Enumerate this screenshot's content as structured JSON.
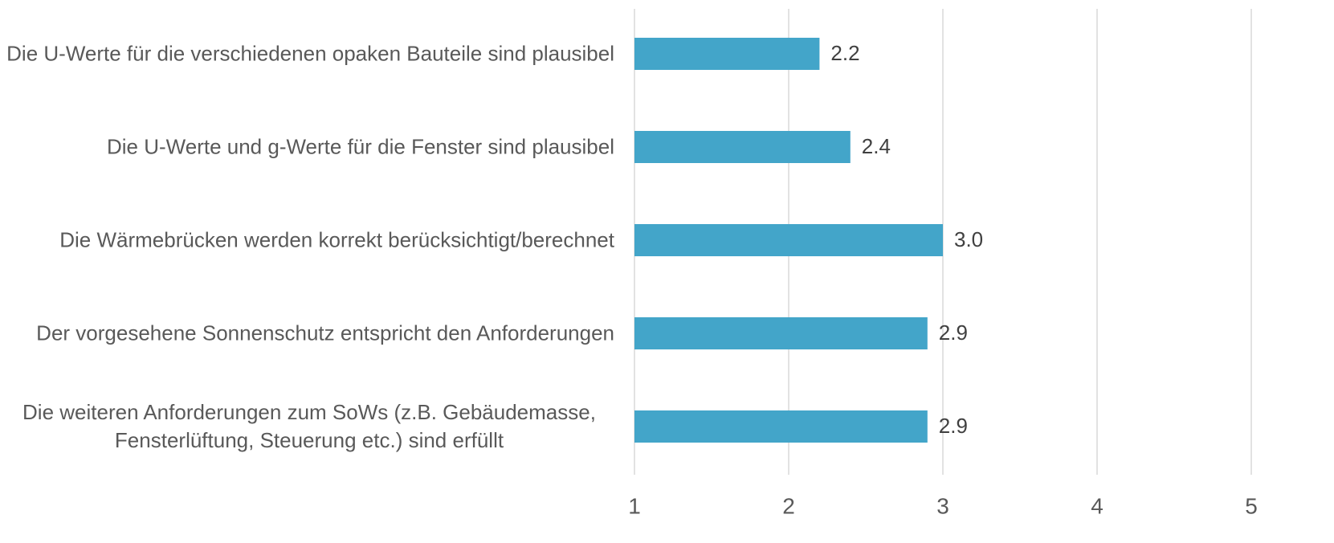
{
  "chart_data": {
    "type": "barh",
    "categories": [
      "Die U-Werte für die verschiedenen opaken Bauteile sind plausibel",
      "Die U-Werte und g-Werte für die Fenster sind plausibel",
      "Die Wärmebrücken werden korrekt berücksichtigt/berechnet",
      "Der vorgesehene Sonnenschutz entspricht den Anforderungen",
      "Die weiteren Anforderungen zum SoWs (z.B. Gebäudemasse, Fensterlüftung, Steuerung etc.) sind erfüllt"
    ],
    "values": [
      2.2,
      2.4,
      3.0,
      2.9,
      2.9
    ],
    "value_labels": [
      "2.2",
      "2.4",
      "3.0",
      "2.9",
      "2.9"
    ],
    "color": "#43a5c9",
    "xlim": [
      1,
      5
    ],
    "xticks": [
      1,
      2,
      3,
      4,
      5
    ],
    "grid": true
  }
}
